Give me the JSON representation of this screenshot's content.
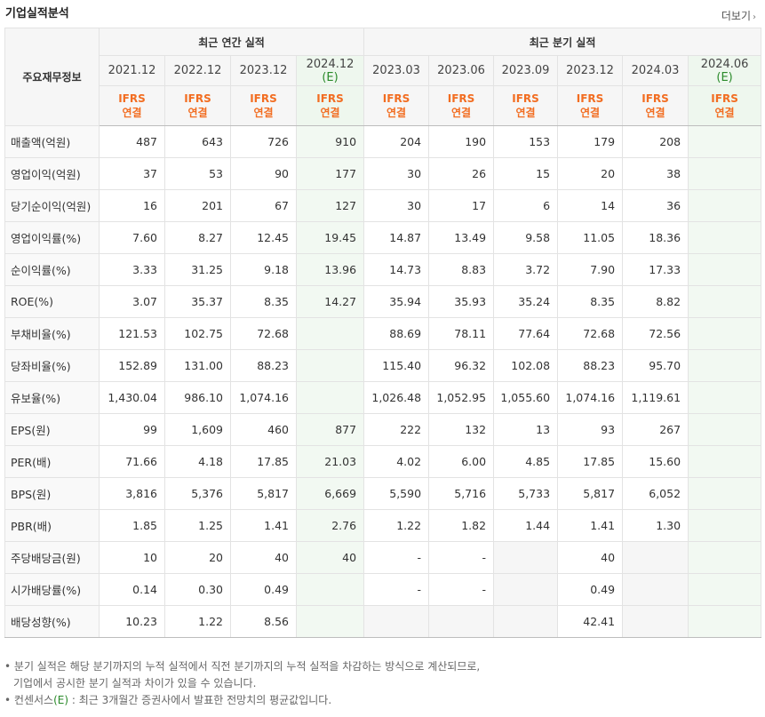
{
  "title": "기업실적분석",
  "more_label": "더보기",
  "header": {
    "row_label": "주요재무정보",
    "annual_group": "최근 연간 실적",
    "quarter_group": "최근 분기 실적",
    "periods": [
      "2021.12",
      "2022.12",
      "2023.12",
      "2024.12",
      "2023.03",
      "2023.06",
      "2023.09",
      "2023.12",
      "2024.03",
      "2024.06"
    ],
    "estimate_mark": "(E)",
    "acc_line1": "IFRS",
    "acc_line2": "연결"
  },
  "rows": [
    {
      "label": "매출액(억원)",
      "values": [
        "487",
        "643",
        "726",
        "910",
        "204",
        "190",
        "153",
        "179",
        "208",
        ""
      ]
    },
    {
      "label": "영업이익(억원)",
      "values": [
        "37",
        "53",
        "90",
        "177",
        "30",
        "26",
        "15",
        "20",
        "38",
        ""
      ]
    },
    {
      "label": "당기순이익(억원)",
      "values": [
        "16",
        "201",
        "67",
        "127",
        "30",
        "17",
        "6",
        "14",
        "36",
        ""
      ]
    },
    {
      "label": "영업이익률(%)",
      "values": [
        "7.60",
        "8.27",
        "12.45",
        "19.45",
        "14.87",
        "13.49",
        "9.58",
        "11.05",
        "18.36",
        ""
      ]
    },
    {
      "label": "순이익률(%)",
      "values": [
        "3.33",
        "31.25",
        "9.18",
        "13.96",
        "14.73",
        "8.83",
        "3.72",
        "7.90",
        "17.33",
        ""
      ]
    },
    {
      "label": "ROE(%)",
      "values": [
        "3.07",
        "35.37",
        "8.35",
        "14.27",
        "35.94",
        "35.93",
        "35.24",
        "8.35",
        "8.82",
        ""
      ]
    },
    {
      "label": "부채비율(%)",
      "values": [
        "121.53",
        "102.75",
        "72.68",
        "",
        "88.69",
        "78.11",
        "77.64",
        "72.68",
        "72.56",
        ""
      ]
    },
    {
      "label": "당좌비율(%)",
      "values": [
        "152.89",
        "131.00",
        "88.23",
        "",
        "115.40",
        "96.32",
        "102.08",
        "88.23",
        "95.70",
        ""
      ]
    },
    {
      "label": "유보율(%)",
      "values": [
        "1,430.04",
        "986.10",
        "1,074.16",
        "",
        "1,026.48",
        "1,052.95",
        "1,055.60",
        "1,074.16",
        "1,119.61",
        ""
      ]
    },
    {
      "label": "EPS(원)",
      "values": [
        "99",
        "1,609",
        "460",
        "877",
        "222",
        "132",
        "13",
        "93",
        "267",
        ""
      ]
    },
    {
      "label": "PER(배)",
      "values": [
        "71.66",
        "4.18",
        "17.85",
        "21.03",
        "4.02",
        "6.00",
        "4.85",
        "17.85",
        "15.60",
        ""
      ]
    },
    {
      "label": "BPS(원)",
      "values": [
        "3,816",
        "5,376",
        "5,817",
        "6,669",
        "5,590",
        "5,716",
        "5,733",
        "5,817",
        "6,052",
        ""
      ]
    },
    {
      "label": "PBR(배)",
      "values": [
        "1.85",
        "1.25",
        "1.41",
        "2.76",
        "1.22",
        "1.82",
        "1.44",
        "1.41",
        "1.30",
        ""
      ]
    },
    {
      "label": "주당배당금(원)",
      "values": [
        "10",
        "20",
        "40",
        "40",
        "-",
        "-",
        "",
        "40",
        "",
        ""
      ]
    },
    {
      "label": "시가배당률(%)",
      "values": [
        "0.14",
        "0.30",
        "0.49",
        "",
        "-",
        "-",
        "",
        "0.49",
        "",
        ""
      ]
    },
    {
      "label": "배당성향(%)",
      "values": [
        "10.23",
        "1.22",
        "8.56",
        "",
        "",
        "",
        "",
        "42.41",
        "",
        ""
      ]
    }
  ],
  "notes": {
    "line1": "분기 실적은 해당 분기까지의 누적 실적에서 직전 분기까지의 누적 실적을 차감하는 방식으로 계산되므로,",
    "line2": "기업에서 공시한 분기 실적과 차이가 있을 수 있습니다.",
    "line3_pre": "컨센서스",
    "line3_e": "(E)",
    "line3_post": " : 최근 3개월간 증권사에서 발표한 전망치의 평균값입니다."
  }
}
